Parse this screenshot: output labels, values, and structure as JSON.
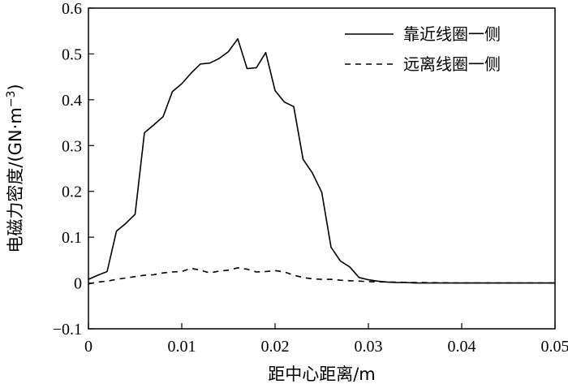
{
  "chart_data": {
    "type": "line",
    "xlabel": "距中心距离/m",
    "ylabel": "电磁力密度/(GN·m⁻³)",
    "xlim": [
      0,
      0.05
    ],
    "ylim": [
      -0.1,
      0.6
    ],
    "x_ticks": [
      "0",
      "0.01",
      "0.02",
      "0.03",
      "0.04",
      "0.05"
    ],
    "y_ticks": [
      "−0.1",
      "0",
      "0.1",
      "0.2",
      "0.3",
      "0.4",
      "0.5",
      "0.6"
    ],
    "x_tick_values": [
      0,
      0.01,
      0.02,
      0.03,
      0.04,
      0.05
    ],
    "y_tick_values": [
      -0.1,
      0,
      0.1,
      0.2,
      0.3,
      0.4,
      0.5,
      0.6
    ],
    "legend_position": "top-right",
    "grid": false,
    "series": [
      {
        "name": "靠近线圈一侧",
        "style": "solid",
        "color": "#000000",
        "x": [
          0,
          0.001,
          0.002,
          0.003,
          0.004,
          0.005,
          0.006,
          0.007,
          0.008,
          0.009,
          0.01,
          0.011,
          0.012,
          0.013,
          0.014,
          0.015,
          0.016,
          0.017,
          0.018,
          0.019,
          0.02,
          0.021,
          0.022,
          0.023,
          0.024,
          0.025,
          0.026,
          0.027,
          0.028,
          0.029,
          0.03,
          0.031,
          0.032,
          0.033,
          0.034,
          0.035,
          0.04,
          0.045,
          0.05
        ],
        "y": [
          0.008,
          0.017,
          0.025,
          0.113,
          0.13,
          0.15,
          0.328,
          0.345,
          0.363,
          0.418,
          0.435,
          0.458,
          0.478,
          0.48,
          0.49,
          0.505,
          0.533,
          0.468,
          0.47,
          0.503,
          0.42,
          0.395,
          0.385,
          0.27,
          0.24,
          0.198,
          0.078,
          0.048,
          0.035,
          0.012,
          0.007,
          0.004,
          0.002,
          0.001,
          0.001,
          0.0,
          0.0,
          0.0,
          0.0
        ]
      },
      {
        "name": "远离线圈一侧",
        "style": "dashed",
        "color": "#000000",
        "x": [
          0,
          0.001,
          0.002,
          0.003,
          0.004,
          0.005,
          0.006,
          0.007,
          0.008,
          0.009,
          0.01,
          0.011,
          0.012,
          0.013,
          0.014,
          0.015,
          0.016,
          0.017,
          0.018,
          0.019,
          0.02,
          0.021,
          0.022,
          0.023,
          0.024,
          0.025,
          0.026,
          0.027,
          0.028,
          0.029,
          0.03,
          0.032,
          0.035,
          0.04,
          0.045,
          0.05
        ],
        "y": [
          -0.002,
          0.002,
          0.004,
          0.008,
          0.011,
          0.014,
          0.017,
          0.018,
          0.022,
          0.024,
          0.025,
          0.032,
          0.028,
          0.022,
          0.026,
          0.028,
          0.033,
          0.03,
          0.024,
          0.025,
          0.027,
          0.024,
          0.017,
          0.012,
          0.009,
          0.008,
          0.008,
          0.006,
          0.005,
          0.004,
          0.003,
          0.002,
          0.001,
          0.0,
          0.0,
          0.0
        ]
      }
    ]
  }
}
